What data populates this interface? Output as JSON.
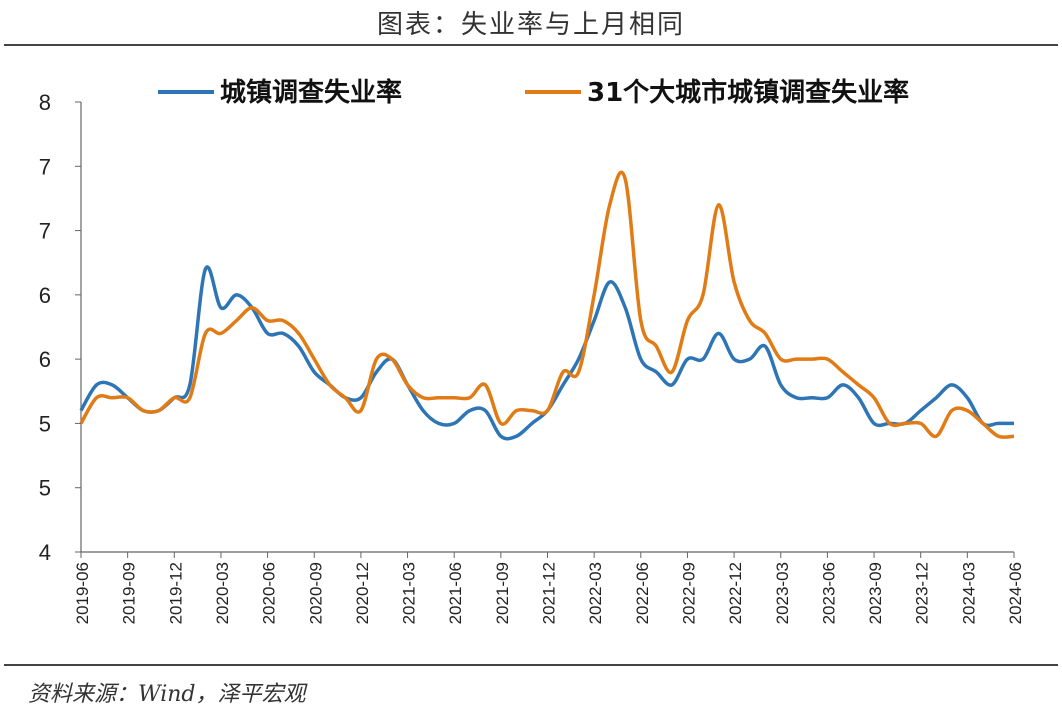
{
  "title": "图表：失业率与上月相同",
  "source": "资料来源：Wind，泽平宏观",
  "chart_data": {
    "type": "line",
    "title": "图表：失业率与上月相同",
    "xlabel": "",
    "ylabel": "",
    "ylim": [
      4,
      7.5
    ],
    "y_ticks": [
      4,
      4.5,
      5,
      5.5,
      6,
      6.5,
      7,
      7.5
    ],
    "y_tick_labels": [
      "4",
      "5",
      "5",
      "6",
      "6",
      "7",
      "7",
      "8"
    ],
    "x_tick_labels": [
      "2019-06",
      "2019-09",
      "2019-12",
      "2020-03",
      "2020-06",
      "2020-09",
      "2020-12",
      "2021-03",
      "2021-06",
      "2021-09",
      "2021-12",
      "2022-03",
      "2022-06",
      "2022-09",
      "2022-12",
      "2023-03",
      "2023-06",
      "2023-09",
      "2023-12",
      "2024-03",
      "2024-06"
    ],
    "x_start": "2019-06",
    "x_end": "2024-06",
    "grid": false,
    "legend_position": "top",
    "series": [
      {
        "name": "城镇调查失业率",
        "color": "#2E75B6",
        "values": [
          5.1,
          5.3,
          5.3,
          5.2,
          5.1,
          5.1,
          5.2,
          5.3,
          6.2,
          5.9,
          6.0,
          5.9,
          5.7,
          5.7,
          5.6,
          5.4,
          5.3,
          5.2,
          5.2,
          5.4,
          5.5,
          5.3,
          5.1,
          5.0,
          5.0,
          5.1,
          5.1,
          4.9,
          4.9,
          5.0,
          5.1,
          5.3,
          5.5,
          5.8,
          6.1,
          5.9,
          5.5,
          5.4,
          5.3,
          5.5,
          5.5,
          5.7,
          5.5,
          5.5,
          5.6,
          5.3,
          5.2,
          5.2,
          5.2,
          5.3,
          5.2,
          5.0,
          5.0,
          5.0,
          5.1,
          5.2,
          5.3,
          5.2,
          5.0,
          5.0,
          5.0
        ]
      },
      {
        "name": "31个大城市城镇调查失业率",
        "color": "#E07B16",
        "values": [
          5.0,
          5.2,
          5.2,
          5.2,
          5.1,
          5.1,
          5.2,
          5.2,
          5.7,
          5.7,
          5.8,
          5.9,
          5.8,
          5.8,
          5.7,
          5.5,
          5.3,
          5.2,
          5.1,
          5.5,
          5.5,
          5.3,
          5.2,
          5.2,
          5.2,
          5.2,
          5.3,
          5.0,
          5.1,
          5.1,
          5.1,
          5.4,
          5.4,
          6.0,
          6.7,
          6.9,
          5.8,
          5.6,
          5.4,
          5.8,
          6.0,
          6.7,
          6.1,
          5.8,
          5.7,
          5.5,
          5.5,
          5.5,
          5.5,
          5.4,
          5.3,
          5.2,
          5.0,
          5.0,
          5.0,
          4.9,
          5.1,
          5.1,
          5.0,
          4.9,
          4.9
        ]
      }
    ]
  }
}
